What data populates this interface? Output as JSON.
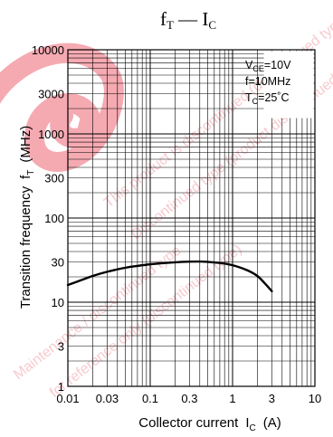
{
  "chart_data": {
    "type": "line",
    "title": "fT — IC",
    "title_parts": {
      "main_a": "f",
      "sub_a": "T",
      "dash": " — ",
      "main_b": "I",
      "sub_b": "C"
    },
    "xlabel": "Collector current IC (A)",
    "xlabel_parts": {
      "text": "Collector current",
      "sym": "I",
      "sub": "C",
      "unit": "(A)"
    },
    "ylabel": "Transition frequency fT (MHz)",
    "ylabel_parts": {
      "text": "Transition frequency",
      "sym": "f",
      "sub": "T",
      "unit": "(MHz)"
    },
    "x_scale": "log",
    "y_scale": "log",
    "xlim": [
      0.01,
      10
    ],
    "ylim": [
      1,
      10000
    ],
    "x_tick_labels": [
      "0.01",
      "0.03",
      "0.1",
      "0.3",
      "1",
      "3",
      "10"
    ],
    "y_tick_labels": [
      "1",
      "3",
      "10",
      "30",
      "100",
      "300",
      "1000",
      "3000",
      "10000"
    ],
    "grid": true,
    "legend_position": "top-right",
    "conditions": [
      {
        "main": "V",
        "sub": "CE",
        "rest": "=10V"
      },
      {
        "main": "f=10MHz",
        "sub": "",
        "rest": ""
      },
      {
        "main": "T",
        "sub": "C",
        "rest": "=25˚C"
      }
    ],
    "series": [
      {
        "x": [
          0.01,
          0.015,
          0.02,
          0.03,
          0.05,
          0.07,
          0.1,
          0.15,
          0.2,
          0.3,
          0.4,
          0.5,
          0.7,
          1.0,
          1.5,
          2.0,
          2.5,
          3.0
        ],
        "y": [
          16,
          18.5,
          20.5,
          23,
          25.7,
          27,
          28.2,
          29.2,
          29.8,
          30.3,
          30.4,
          30.1,
          29.3,
          27.5,
          24,
          20.5,
          16.5,
          13.5
        ]
      }
    ]
  },
  "watermark": {
    "lines": [
      "This product is discontinued (discontinued type)",
      "Discontinued type (product discontinued)",
      "Maintenance / discontinued type",
      "for reference only (discontinued type)"
    ]
  },
  "colors": {
    "line": "#000000",
    "grid": "#000000",
    "watermark": "#f4b3ba"
  }
}
